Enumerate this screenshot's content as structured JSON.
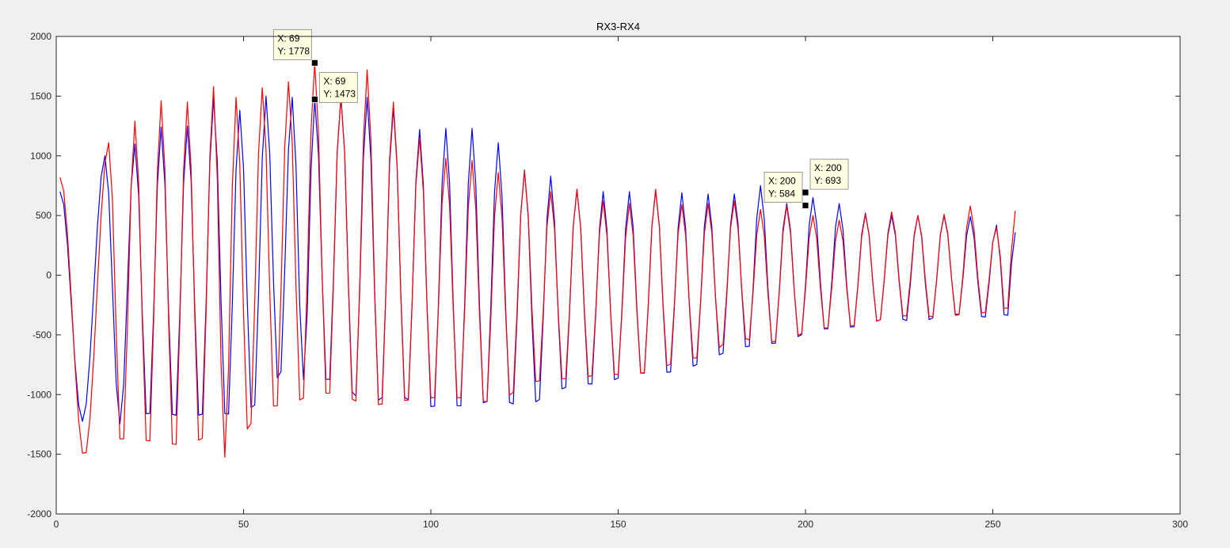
{
  "chart_data": {
    "type": "line",
    "title": "RX3-RX4",
    "xlabel": "",
    "ylabel": "",
    "xlim": [
      0,
      300
    ],
    "ylim": [
      -2000,
      2000
    ],
    "xticks": [
      0,
      50,
      100,
      150,
      200,
      250,
      300
    ],
    "yticks": [
      -2000,
      -1500,
      -1000,
      -500,
      0,
      500,
      1000,
      1500,
      2000
    ],
    "grid": false,
    "legend": "none",
    "series": [
      {
        "color": "#0000ff",
        "envelope": {
          "x": [
            1,
            13,
            21,
            28,
            35,
            42,
            49,
            56,
            63,
            69,
            76,
            83,
            90,
            97,
            104,
            111,
            118,
            125,
            132,
            139,
            146,
            153,
            160,
            167,
            174,
            181,
            188,
            195,
            202,
            209,
            216,
            223,
            230,
            237,
            244,
            251,
            256
          ],
          "peaks": [
            700,
            1000,
            1100,
            1240,
            1250,
            1480,
            1380,
            1500,
            1490,
            1473,
            1500,
            1490,
            1400,
            1220,
            1230,
            1230,
            1110,
            880,
            830,
            720,
            700,
            700,
            710,
            690,
            680,
            680,
            750,
            600,
            650,
            600,
            520,
            500,
            500,
            500,
            490,
            420,
            360
          ],
          "troughs": [
            -1250,
            -1200,
            -1290,
            -1270,
            -1320,
            -1280,
            -1310,
            -1150,
            -760,
            -990,
            -1000,
            -1250,
            -1080,
            -1230,
            -1210,
            -1220,
            -1140,
            -1220,
            -1080,
            -990,
            -1000,
            -900,
            -900,
            -880,
            -780,
            -680,
            -650,
            -620,
            -510,
            -500,
            -470,
            -380,
            -460,
            -360,
            -380,
            -400,
            -420
          ]
        }
      },
      {
        "color": "#ff0000",
        "envelope": {
          "x": [
            1,
            14,
            21,
            28,
            35,
            42,
            48,
            55,
            62,
            69,
            76,
            83,
            90,
            97,
            104,
            111,
            118,
            125,
            132,
            139,
            146,
            153,
            160,
            167,
            174,
            181,
            188,
            195,
            202,
            209,
            216,
            223,
            230,
            237,
            244,
            251,
            256
          ],
          "peaks": [
            820,
            1110,
            1290,
            1460,
            1450,
            1580,
            1490,
            1570,
            1620,
            1778,
            1490,
            1720,
            1450,
            1150,
            980,
            960,
            860,
            870,
            700,
            720,
            620,
            600,
            720,
            590,
            600,
            620,
            550,
            580,
            500,
            460,
            510,
            530,
            500,
            510,
            580,
            400,
            540
          ],
          "troughs": [
            -1550,
            -1500,
            -1510,
            -1550,
            -1580,
            -1470,
            -1580,
            -1240,
            -1230,
            -1130,
            -1120,
            -1250,
            -1190,
            -1150,
            -1120,
            -1140,
            -1180,
            -1000,
            -950,
            -950,
            -900,
            -910,
            -880,
            -770,
            -750,
            -560,
            -630,
            -600,
            -500,
            -480,
            -460,
            -390,
            -380,
            -400,
            -360,
            -350,
            -360
          ]
        }
      }
    ],
    "annotations": [
      {
        "x": 69,
        "y": 1778,
        "label_x": "X: 69",
        "label_y": "Y: 1778",
        "placement": "upper-left"
      },
      {
        "x": 69,
        "y": 1473,
        "label_x": "X: 69",
        "label_y": "Y: 1473",
        "placement": "right"
      },
      {
        "x": 200,
        "y": 693,
        "label_x": "X: 200",
        "label_y": "Y: 693",
        "placement": "upper-right"
      },
      {
        "x": 200,
        "y": 584,
        "label_x": "X: 200",
        "label_y": "Y: 584",
        "placement": "upper-left"
      }
    ]
  }
}
